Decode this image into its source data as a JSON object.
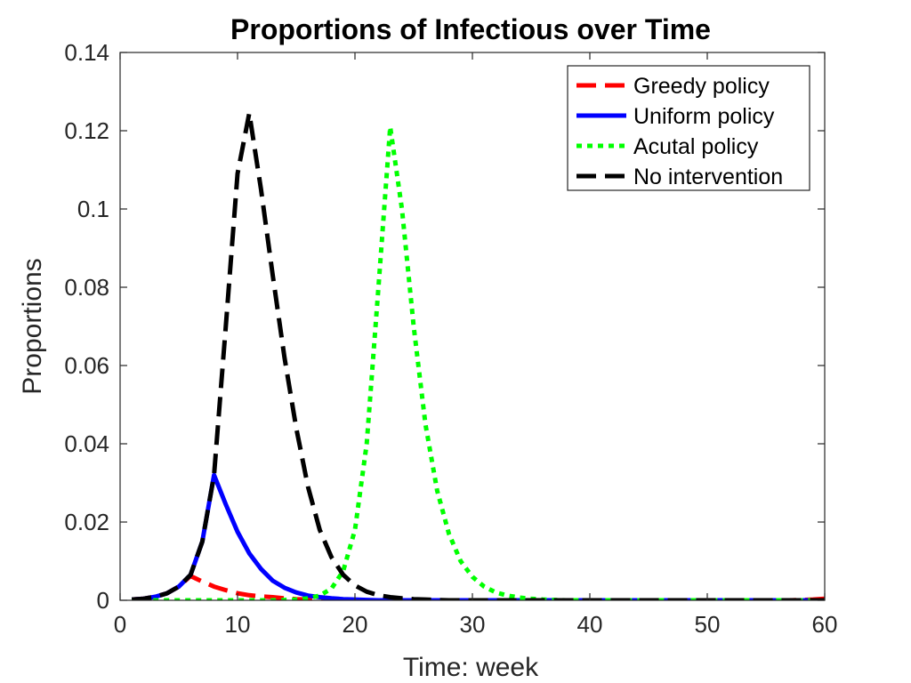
{
  "chart_data": {
    "type": "line",
    "title": "Proportions of Infectious over Time",
    "xlabel": "Time: week",
    "ylabel": "Proportions",
    "xlim": [
      0,
      60
    ],
    "ylim": [
      0,
      0.14
    ],
    "xticks": [
      "0",
      "10",
      "20",
      "30",
      "40",
      "50",
      "60"
    ],
    "yticks": [
      "0",
      "0.02",
      "0.04",
      "0.06",
      "0.08",
      "0.1",
      "0.12",
      "0.14"
    ],
    "grid": false,
    "legend_position": "top-right",
    "x": [
      1,
      2,
      3,
      4,
      5,
      6,
      7,
      8,
      9,
      10,
      11,
      12,
      13,
      14,
      15,
      16,
      17,
      18,
      19,
      20,
      21,
      22,
      23,
      24,
      25,
      26,
      27,
      28,
      29,
      30,
      31,
      32,
      33,
      34,
      35,
      36,
      37,
      38,
      39,
      40,
      41,
      42,
      43,
      44,
      45,
      46,
      47,
      48,
      49,
      50,
      51,
      52,
      53,
      54,
      55,
      56,
      57,
      58,
      59,
      60
    ],
    "series": [
      {
        "name": "Greedy policy",
        "color": "#ff0000",
        "style": "dashed",
        "values": [
          0.0002,
          0.0004,
          0.0009,
          0.0018,
          0.0035,
          0.0062,
          0.0048,
          0.0035,
          0.0026,
          0.0018,
          0.0013,
          0.001,
          0.0008,
          0.0005,
          0.0003,
          0.0002,
          0.0001,
          0,
          0,
          0,
          0,
          0,
          0,
          0,
          0,
          0,
          0,
          0,
          0,
          0,
          0,
          0,
          0,
          0,
          0,
          0,
          0,
          0,
          0,
          0,
          0,
          0,
          0,
          0,
          0,
          0,
          0,
          0,
          0,
          0,
          0,
          0,
          0,
          0,
          0,
          0,
          0,
          0.0001,
          0.0002,
          0.0004
        ]
      },
      {
        "name": "Uniform policy",
        "color": "#0000ff",
        "style": "solid",
        "values": [
          0.0002,
          0.0004,
          0.0009,
          0.0018,
          0.0035,
          0.0065,
          0.015,
          0.032,
          0.0245,
          0.0175,
          0.012,
          0.008,
          0.005,
          0.0032,
          0.002,
          0.0012,
          0.0008,
          0.0005,
          0.0003,
          0.0002,
          0.0001,
          0,
          0,
          0,
          0,
          0,
          0,
          0,
          0,
          0,
          0,
          0,
          0,
          0,
          0,
          0,
          0,
          0,
          0,
          0,
          0,
          0,
          0,
          0,
          0,
          0,
          0,
          0,
          0,
          0,
          0,
          0,
          0,
          0,
          0,
          0,
          0,
          0,
          0,
          0
        ]
      },
      {
        "name": "Acutal policy",
        "color": "#00ff00",
        "style": "dotted",
        "values": [
          0,
          0,
          0,
          0,
          0,
          0,
          0,
          0,
          0,
          0,
          0,
          0,
          0,
          0.0001,
          0.0002,
          0.0005,
          0.0012,
          0.003,
          0.0075,
          0.018,
          0.04,
          0.08,
          0.121,
          0.1,
          0.07,
          0.045,
          0.028,
          0.017,
          0.01,
          0.006,
          0.0035,
          0.002,
          0.0012,
          0.0007,
          0.0004,
          0.0002,
          0.0001,
          0,
          0,
          0,
          0,
          0,
          0,
          0,
          0,
          0,
          0,
          0,
          0,
          0,
          0,
          0,
          0,
          0,
          0,
          0,
          0,
          0,
          0,
          0
        ]
      },
      {
        "name": "No intervention",
        "color": "#000000",
        "style": "dashed",
        "values": [
          0.0002,
          0.0004,
          0.0009,
          0.0018,
          0.0035,
          0.0065,
          0.015,
          0.032,
          0.07,
          0.109,
          0.1245,
          0.105,
          0.083,
          0.062,
          0.044,
          0.029,
          0.018,
          0.011,
          0.0065,
          0.0038,
          0.0022,
          0.0013,
          0.0008,
          0.0005,
          0.0003,
          0.0002,
          0.0001,
          0,
          0,
          0,
          0,
          0,
          0,
          0,
          0,
          0,
          0,
          0,
          0,
          0,
          0,
          0,
          0,
          0,
          0,
          0,
          0,
          0,
          0,
          0,
          0,
          0,
          0,
          0,
          0,
          0,
          0,
          0,
          0,
          0
        ]
      }
    ]
  }
}
